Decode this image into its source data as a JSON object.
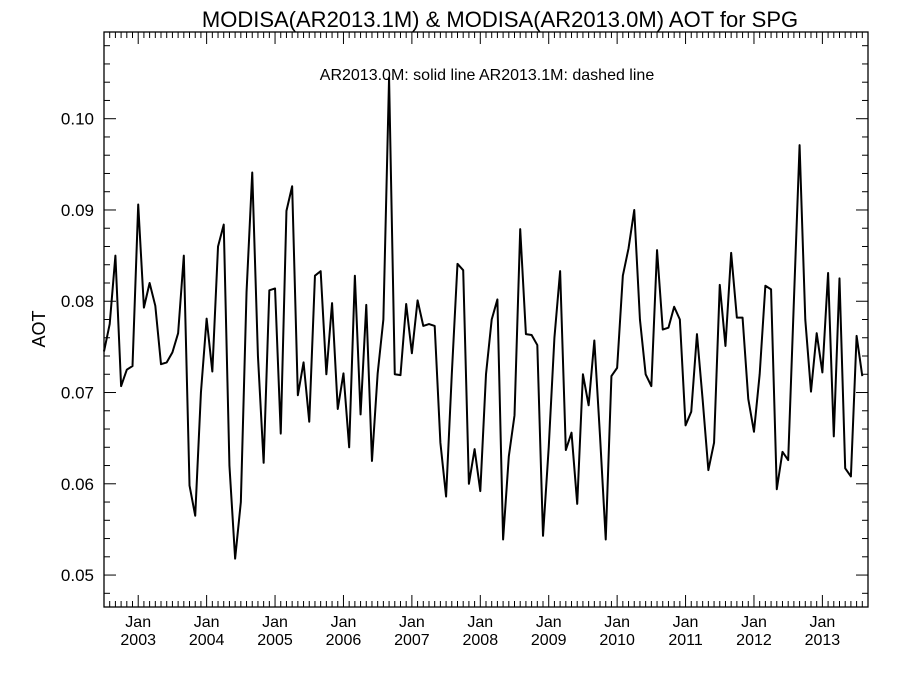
{
  "chart_data": {
    "type": "line",
    "title": "MODISA(AR2013.1M) & MODISA(AR2013.0M)  AOT for SPG",
    "annotation": "AR2013.0M: solid line   AR2013.1M: dashed line",
    "xlabel": "",
    "ylabel": "AOT",
    "xlim": [
      "2002-07",
      "2013-09"
    ],
    "ylim": [
      0.0465,
      0.1095
    ],
    "yticks": [
      "0.05",
      "0.06",
      "0.07",
      "0.08",
      "0.09",
      "0.10"
    ],
    "xticks": [
      {
        "date": "2003-01",
        "month": "Jan",
        "year": "2003"
      },
      {
        "date": "2004-01",
        "month": "Jan",
        "year": "2004"
      },
      {
        "date": "2005-01",
        "month": "Jan",
        "year": "2005"
      },
      {
        "date": "2006-01",
        "month": "Jan",
        "year": "2006"
      },
      {
        "date": "2007-01",
        "month": "Jan",
        "year": "2007"
      },
      {
        "date": "2008-01",
        "month": "Jan",
        "year": "2008"
      },
      {
        "date": "2009-01",
        "month": "Jan",
        "year": "2009"
      },
      {
        "date": "2010-01",
        "month": "Jan",
        "year": "2010"
      },
      {
        "date": "2011-01",
        "month": "Jan",
        "year": "2011"
      },
      {
        "date": "2012-01",
        "month": "Jan",
        "year": "2012"
      },
      {
        "date": "2013-01",
        "month": "Jan",
        "year": "2013"
      }
    ],
    "grid": false,
    "series": [
      {
        "name": "AR2013.0M",
        "style": "solid",
        "color": "#000000",
        "start": "2002-07",
        "values": [
          0.0745,
          0.0775,
          0.085,
          0.0707,
          0.0725,
          0.0729,
          0.0906,
          0.0793,
          0.082,
          0.0795,
          0.0731,
          0.0733,
          0.0744,
          0.0765,
          0.085,
          0.0598,
          0.0565,
          0.07,
          0.0781,
          0.0723,
          0.086,
          0.0884,
          0.062,
          0.0518,
          0.058,
          0.081,
          0.0941,
          0.074,
          0.0623,
          0.0812,
          0.0814,
          0.0655,
          0.0899,
          0.0926,
          0.0697,
          0.0733,
          0.0668,
          0.0828,
          0.0833,
          0.072,
          0.0798,
          0.0682,
          0.0721,
          0.064,
          0.0828,
          0.0676,
          0.0796,
          0.0625,
          0.0721,
          0.078,
          0.1045,
          0.072,
          0.0719,
          0.0797,
          0.0743,
          0.0801,
          0.0773,
          0.0775,
          0.0773,
          0.0645,
          0.0586,
          0.072,
          0.0841,
          0.0834,
          0.06,
          0.0638,
          0.0592,
          0.072,
          0.078,
          0.0802,
          0.0539,
          0.063,
          0.0675,
          0.0879,
          0.0764,
          0.0763,
          0.0752,
          0.0543,
          0.064,
          0.076,
          0.0833,
          0.0637,
          0.0656,
          0.0578,
          0.072,
          0.0686,
          0.0757,
          0.0652,
          0.0539,
          0.0718,
          0.0727,
          0.0828,
          0.0858,
          0.09,
          0.078,
          0.072,
          0.0707,
          0.0856,
          0.0769,
          0.0771,
          0.0794,
          0.078,
          0.0664,
          0.0679,
          0.0764,
          0.0692,
          0.0615,
          0.0645,
          0.0818,
          0.0751,
          0.0853,
          0.0782,
          0.0782,
          0.0693,
          0.0657,
          0.072,
          0.0817,
          0.0813,
          0.0594,
          0.0635,
          0.0626,
          0.08,
          0.0971,
          0.078,
          0.0701,
          0.0765,
          0.0722,
          0.0831,
          0.0652,
          0.0825,
          0.0617,
          0.0608,
          0.0762,
          0.0718
        ]
      }
    ]
  }
}
